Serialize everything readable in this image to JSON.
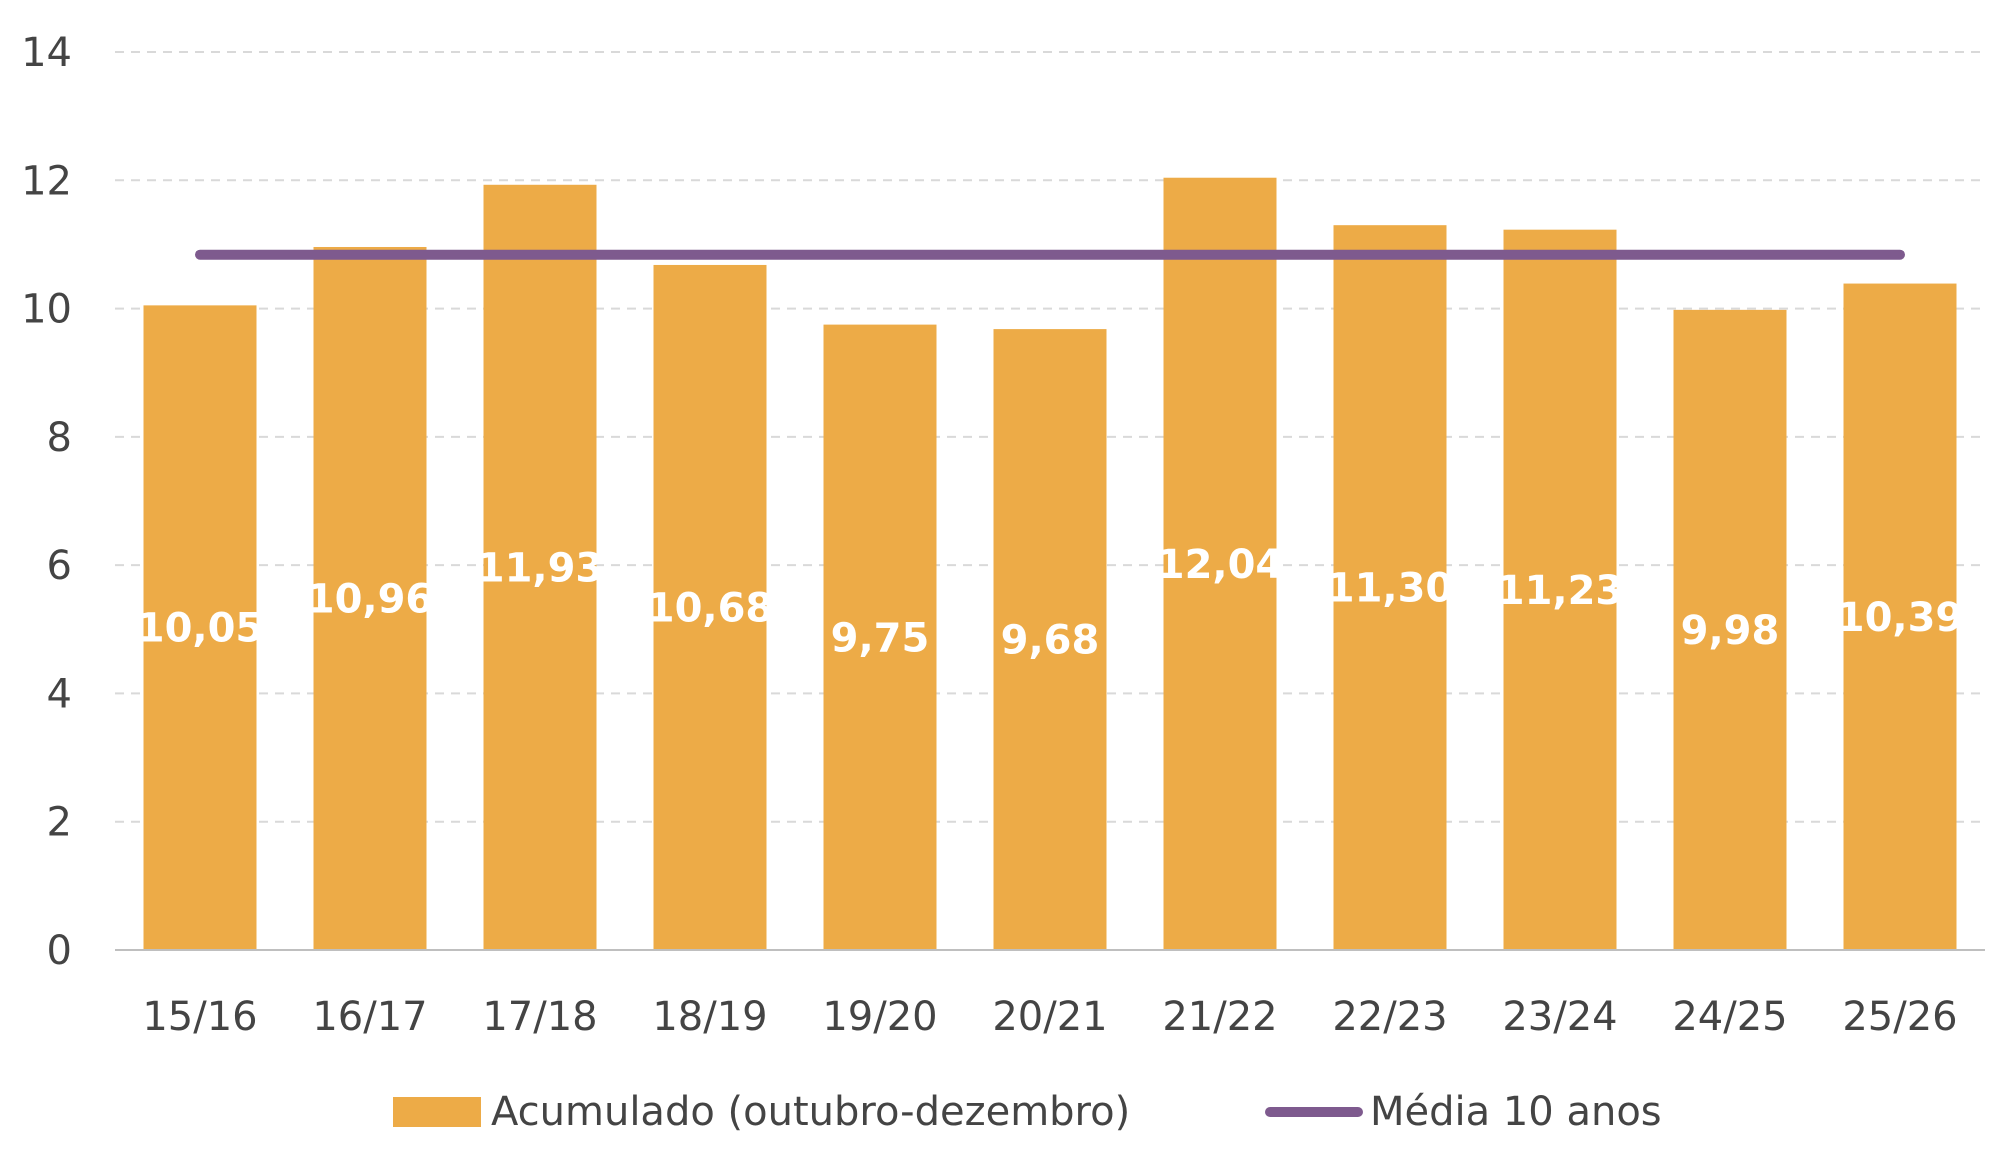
{
  "chart_data": {
    "type": "bar",
    "categories": [
      "15/16",
      "16/17",
      "17/18",
      "18/19",
      "19/20",
      "20/21",
      "21/22",
      "22/23",
      "23/24",
      "24/25",
      "25/26"
    ],
    "series": [
      {
        "name": "Acumulado (outubro-dezembro)",
        "type": "bar",
        "values": [
          10.05,
          10.96,
          11.93,
          10.68,
          9.75,
          9.68,
          12.04,
          11.3,
          11.23,
          9.98,
          10.39
        ],
        "labels": [
          "10,05",
          "10,96",
          "11,93",
          "10,68",
          "9,75",
          "9,68",
          "12,04",
          "11,30",
          "11,23",
          "9,98",
          "10,39"
        ],
        "color": "#EDAB47"
      },
      {
        "name": "Média 10 anos",
        "type": "line",
        "values": [
          10.84,
          10.84,
          10.84,
          10.84,
          10.84,
          10.84,
          10.84,
          10.84,
          10.84,
          10.84,
          10.84
        ],
        "color": "#7E5A8E"
      }
    ],
    "ylim": [
      0,
      14
    ],
    "yticks": [
      "0",
      "2",
      "4",
      "6",
      "8",
      "10",
      "12",
      "14"
    ],
    "grid": true,
    "grid_style": "dashed",
    "legend": "bottom",
    "title": "",
    "xlabel": "",
    "ylabel": ""
  }
}
